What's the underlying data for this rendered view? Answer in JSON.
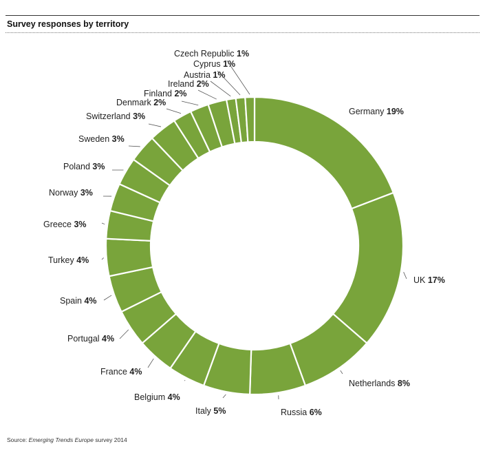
{
  "title": "Survey responses by territory",
  "source": {
    "prefix": "Source: ",
    "italic": "Emerging Trends Europe",
    "suffix": " survey 2014"
  },
  "colors": {
    "slice": "#79a43b",
    "separator": "#ffffff",
    "leader": "#555555"
  },
  "chart_data": {
    "type": "pie",
    "variant": "donut",
    "unit": "%",
    "categories": [
      "Germany",
      "UK",
      "Netherlands",
      "Russia",
      "Italy",
      "Belgium",
      "France",
      "Portugal",
      "Spain",
      "Turkey",
      "Greece",
      "Norway",
      "Poland",
      "Sweden",
      "Switzerland",
      "Denmark",
      "Finland",
      "Ireland",
      "Austria",
      "Cyprus",
      "Czech Republic"
    ],
    "values": [
      19,
      17,
      8,
      6,
      5,
      4,
      4,
      4,
      4,
      4,
      3,
      3,
      3,
      3,
      3,
      2,
      2,
      2,
      1,
      1,
      1
    ],
    "labels": [
      "Germany 19%",
      "UK 17%",
      "Netherlands 8%",
      "Russia 6%",
      "Italy 5%",
      "Belgium 4%",
      "France 4%",
      "Portugal 4%",
      "Spain 4%",
      "Turkey 4%",
      "Greece 3%",
      "Norway 3%",
      "Poland 3%",
      "Sweden 3%",
      "Switzerland 3%",
      "Denmark 2%",
      "Finland 2%",
      "Ireland 2%",
      "Austria 1%",
      "Cyprus 1%",
      "Czech Republic 1%"
    ]
  }
}
